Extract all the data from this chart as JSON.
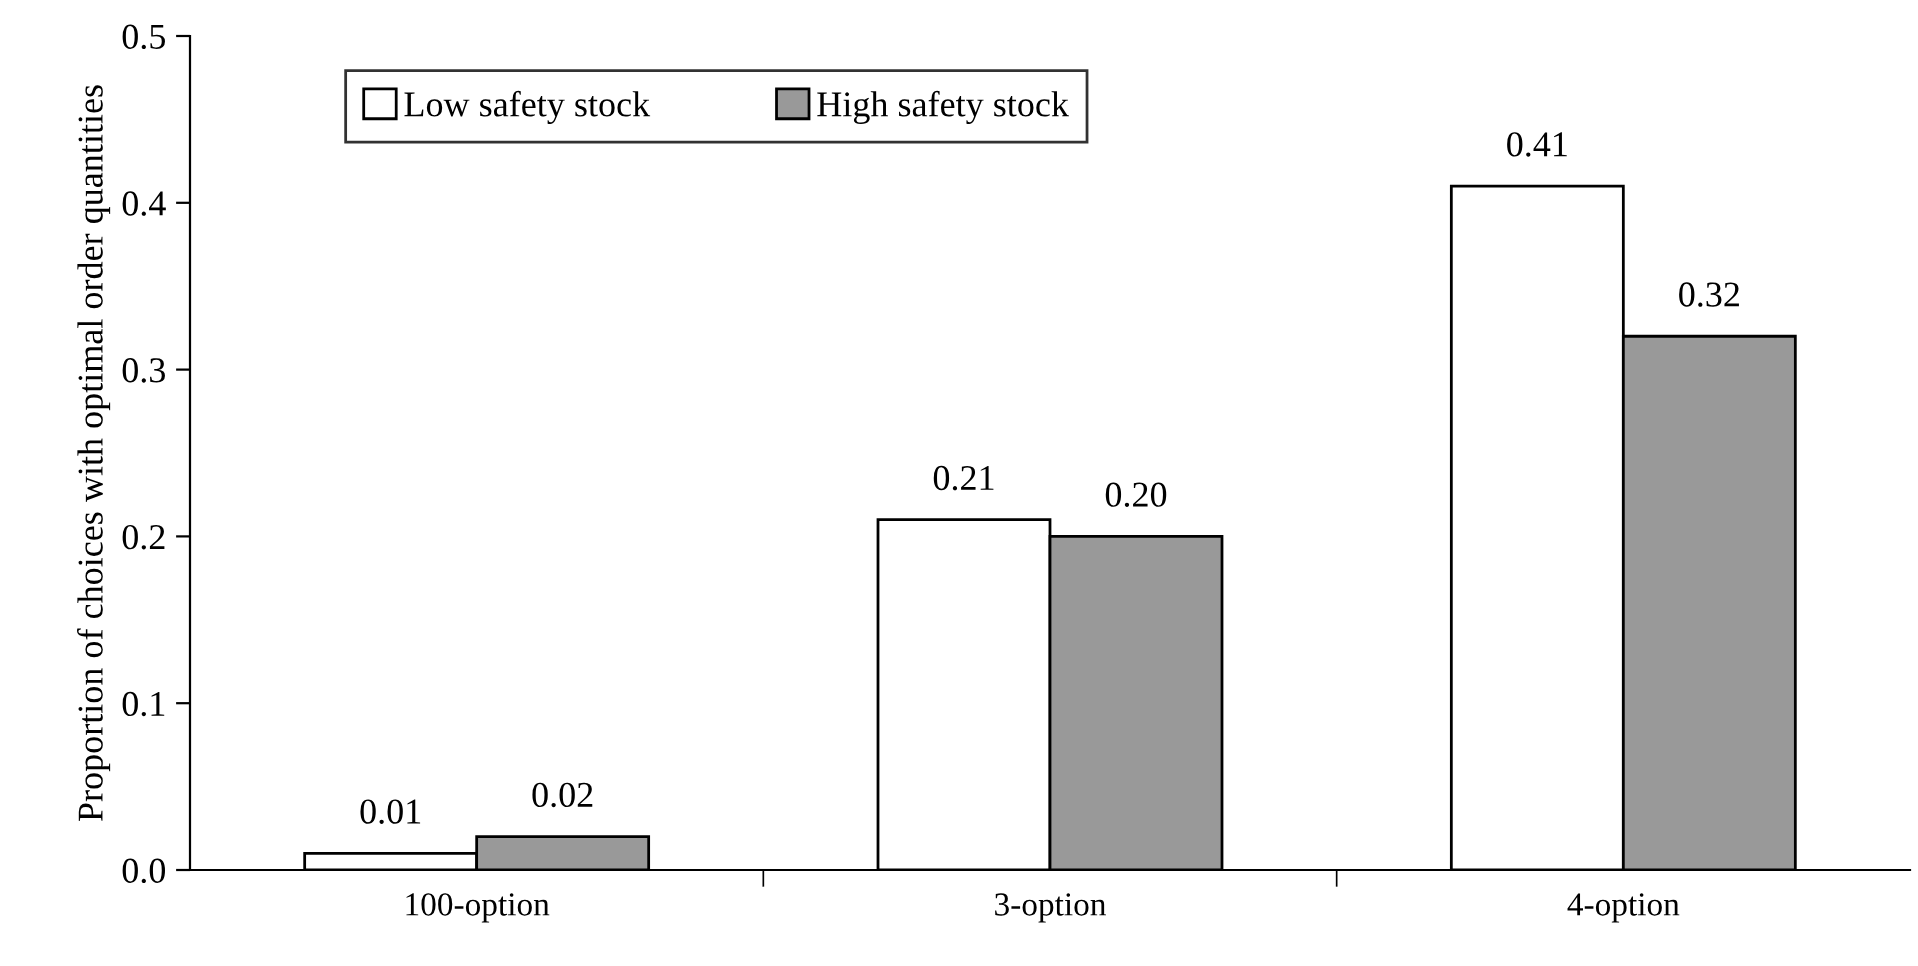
{
  "chart_data": {
    "type": "bar",
    "ylabel": "Proportion of choices with optimal order quantities",
    "categories": [
      "100-option",
      "3-option",
      "4-option"
    ],
    "series": [
      {
        "name": "Low safety stock",
        "color": "#ffffff",
        "values": [
          0.01,
          0.21,
          0.41
        ],
        "value_labels": [
          "0.01",
          "0.21",
          "0.41"
        ]
      },
      {
        "name": "High safety stock",
        "color": "#999999",
        "values": [
          0.02,
          0.2,
          0.32
        ],
        "value_labels": [
          "0.02",
          "0.20",
          "0.32"
        ]
      }
    ],
    "ylim": [
      0,
      0.5
    ],
    "yticks": [
      {
        "value": 0,
        "label": "0.0"
      },
      {
        "value": 0.1,
        "label": "0.1"
      },
      {
        "value": 0.2,
        "label": "0.2"
      },
      {
        "value": 0.3,
        "label": "0.3"
      },
      {
        "value": 0.4,
        "label": "0.4"
      },
      {
        "value": 0.5,
        "label": "0.5"
      }
    ],
    "grid": false,
    "legend": "top left"
  }
}
